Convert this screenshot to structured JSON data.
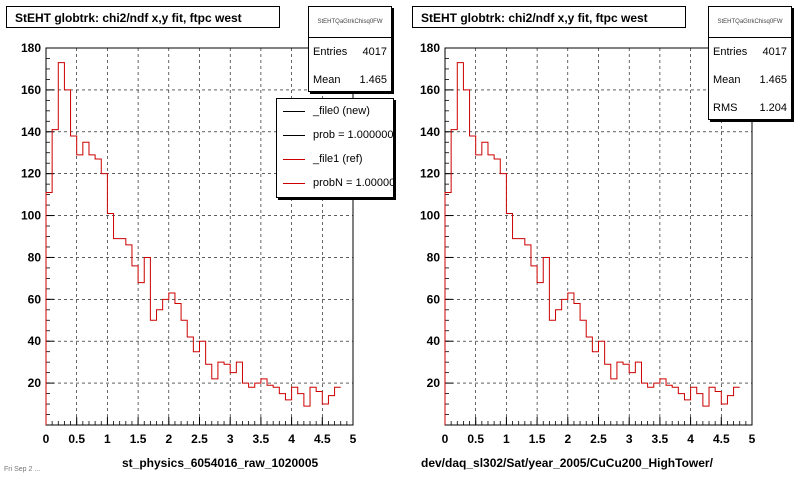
{
  "colors": {
    "ref": "#cc0000",
    "new": "#000000",
    "frame": "#000000"
  },
  "panels": [
    {
      "title": "StEHT globtrk: chi2/ndf x,y fit, ftpc west",
      "caption": "st_physics_6054016_raw_1020005",
      "stats": {
        "header": "StEHTQaGtrkChisq0FW",
        "rows": [
          {
            "label": "Entries",
            "value": "4017"
          },
          {
            "label": "Mean",
            "value": "1.465"
          }
        ]
      }
    },
    {
      "title": "StEHT globtrk: chi2/ndf x,y fit, ftpc west",
      "caption": "dev/daq_sl302/Sat/year_2005/CuCu200_HighTower/",
      "stats": {
        "header": "StEHTQaGtrkChisq0FW",
        "rows": [
          {
            "label": "Entries",
            "value": "4017"
          },
          {
            "label": "Mean",
            "value": "1.465"
          },
          {
            "label": "RMS",
            "value": "1.204"
          }
        ]
      }
    }
  ],
  "legend": {
    "entries": [
      {
        "label": "_file0 (new)",
        "color": "#000000"
      },
      {
        "label": "prob = 1.000000",
        "color": "#000000"
      },
      {
        "label": "_file1 (ref)",
        "color": "#cc0000"
      },
      {
        "label": "probN = 1.000000",
        "color": "#cc0000"
      }
    ]
  },
  "footer_note": "Fri Sep 2 ...",
  "chart_data": [
    {
      "type": "step-histogram",
      "title": "StEHT globtrk: chi2/ndf x,y fit, ftpc west",
      "xlim": [
        0,
        5
      ],
      "ylim": [
        0,
        180
      ],
      "xticks": [
        "0",
        "0.5",
        "1",
        "1.5",
        "2",
        "2.5",
        "3",
        "3.5",
        "4",
        "4.5",
        "5"
      ],
      "yticks": [
        "20",
        "40",
        "60",
        "80",
        "100",
        "120",
        "140",
        "160",
        "180"
      ],
      "grid": true,
      "bin_width": 0.1,
      "series": [
        {
          "name": "_file1 (ref)",
          "values": [
            111,
            141,
            173,
            160,
            138,
            129,
            135,
            129,
            127,
            120,
            101,
            89,
            89,
            86,
            76,
            68,
            80,
            50,
            55,
            60,
            63,
            58,
            50,
            42,
            35,
            40,
            29,
            22,
            30,
            29,
            25,
            30,
            20,
            18,
            20,
            22,
            19,
            18,
            15,
            12,
            18,
            15,
            9,
            18,
            16,
            10,
            14,
            18
          ]
        }
      ]
    },
    {
      "type": "step-histogram",
      "title": "StEHT globtrk: chi2/ndf x,y fit, ftpc west",
      "xlim": [
        0,
        5
      ],
      "ylim": [
        0,
        180
      ],
      "xticks": [
        "0",
        "0.5",
        "1",
        "1.5",
        "2",
        "2.5",
        "3",
        "3.5",
        "4",
        "4.5",
        "5"
      ],
      "yticks": [
        "20",
        "40",
        "60",
        "80",
        "100",
        "120",
        "140",
        "160",
        "180"
      ],
      "grid": true,
      "bin_width": 0.1,
      "series": [
        {
          "name": "_file1 (ref)",
          "values": [
            111,
            141,
            173,
            160,
            138,
            129,
            135,
            129,
            127,
            120,
            101,
            89,
            89,
            86,
            76,
            68,
            80,
            50,
            55,
            60,
            63,
            58,
            50,
            42,
            35,
            40,
            29,
            22,
            30,
            29,
            25,
            30,
            20,
            18,
            20,
            22,
            19,
            18,
            15,
            12,
            18,
            15,
            9,
            18,
            16,
            10,
            14,
            18
          ]
        }
      ]
    }
  ]
}
